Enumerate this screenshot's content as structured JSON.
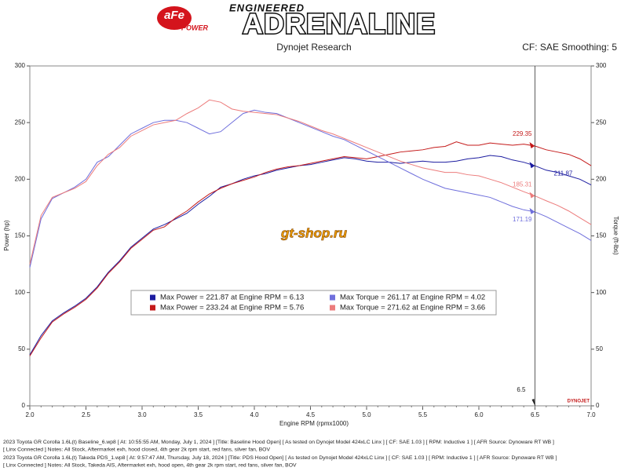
{
  "header": {
    "brand": "aFe",
    "brand_sub": "POWER",
    "tagline_top": "ENGINEERED",
    "tagline": "ADRENALINE"
  },
  "chart_data": {
    "type": "line",
    "title": "Dynojet Research",
    "subtitle": "CF: SAE Smoothing: 5",
    "xlabel": "Engine RPM (rpmx1000)",
    "ylabel": "Power (hp)",
    "y2label": "Torque (ft-lbs)",
    "watermark": "gt-shop.ru",
    "badge": "DYNOJET",
    "x": [
      2,
      2.1,
      2.2,
      2.3,
      2.4,
      2.5,
      2.6,
      2.7,
      2.8,
      2.9,
      3,
      3.1,
      3.2,
      3.3,
      3.4,
      3.5,
      3.6,
      3.7,
      3.8,
      3.9,
      4,
      4.1,
      4.2,
      4.3,
      4.4,
      4.5,
      4.6,
      4.7,
      4.8,
      4.9,
      5,
      5.1,
      5.2,
      5.3,
      5.4,
      5.5,
      5.6,
      5.7,
      5.8,
      5.9,
      6,
      6.1,
      6.2,
      6.3,
      6.4,
      6.5,
      6.6,
      6.7,
      6.8,
      6.9,
      7
    ],
    "xlim": [
      2,
      7
    ],
    "xticks": [
      {
        "value": 2,
        "label": "2.0"
      },
      2.5,
      {
        "value": 3,
        "label": "3.0"
      },
      3.5,
      {
        "value": 4,
        "label": "4.0"
      },
      4.5,
      {
        "value": 5,
        "label": "5.0"
      },
      5.5,
      {
        "value": 6,
        "label": "6.0"
      },
      6.5,
      {
        "value": 7,
        "label": "7.0"
      }
    ],
    "ylim": [
      0,
      300
    ],
    "yticks": [
      0,
      50,
      100,
      150,
      200,
      250,
      300
    ],
    "y2lim": [
      0,
      300
    ],
    "y2ticks": [
      0,
      50,
      100,
      150,
      200,
      250,
      300
    ],
    "grid": false,
    "series": [
      {
        "name": "Max Power = 221.87 at Engine RPM = 6.13",
        "color": "#1c1ca0",
        "values": [
          45,
          62,
          75,
          82,
          88,
          95,
          105,
          118,
          128,
          140,
          148,
          156,
          160,
          165,
          170,
          178,
          185,
          193,
          196,
          200,
          203,
          205,
          208,
          210,
          212,
          213,
          215,
          217,
          219,
          218,
          216,
          215,
          215,
          214,
          215,
          216,
          215,
          215,
          216,
          218,
          219,
          221,
          220,
          217,
          215,
          211.87,
          208,
          206,
          203,
          200,
          195
        ]
      },
      {
        "name": "Max Power = 233.24 at Engine RPM = 5.76",
        "color": "#c41a1a",
        "values": [
          44,
          60,
          74,
          81,
          87,
          94,
          104,
          117,
          127,
          139,
          147,
          155,
          158,
          166,
          172,
          180,
          187,
          192,
          196,
          199,
          202,
          206,
          209,
          211,
          212,
          214,
          216,
          218,
          220,
          219,
          218,
          220,
          222,
          224,
          225,
          226,
          228,
          229,
          233,
          230,
          230,
          232,
          231,
          230,
          231,
          229.35,
          226,
          224,
          222,
          218,
          212
        ]
      },
      {
        "name": "Max Torque = 261.17 at Engine RPM = 4.02",
        "color": "#6f6fdc",
        "axis": "y2",
        "values": [
          122,
          165,
          183,
          188,
          193,
          200,
          215,
          220,
          230,
          240,
          245,
          250,
          252,
          252,
          250,
          245,
          240,
          242,
          250,
          258,
          261,
          259,
          258,
          254,
          250,
          246,
          242,
          238,
          235,
          230,
          225,
          220,
          215,
          210,
          205,
          200,
          196,
          192,
          190,
          188,
          186,
          184,
          180,
          176,
          173,
          171.19,
          167,
          162,
          157,
          152,
          146
        ]
      },
      {
        "name": "Max Torque = 271.62 at Engine RPM = 3.66",
        "color": "#ec7c7c",
        "axis": "y2",
        "values": [
          125,
          168,
          184,
          188,
          192,
          198,
          212,
          222,
          228,
          238,
          243,
          248,
          250,
          252,
          258,
          263,
          270,
          268,
          262,
          260,
          259,
          258,
          257,
          254,
          251,
          247,
          243,
          240,
          236,
          232,
          228,
          224,
          220,
          216,
          213,
          210,
          208,
          206,
          206,
          204,
          203,
          200,
          197,
          193,
          189,
          185.31,
          181,
          177,
          172,
          166,
          160
        ]
      }
    ],
    "cursor": 6.5,
    "annotations": [
      {
        "x": 6.5,
        "y": 229.35,
        "text": "229.35",
        "color": "#c41a1a"
      },
      {
        "x": 6.5,
        "y": 211.87,
        "text": "211.87",
        "color": "#1c1ca0"
      },
      {
        "x": 6.5,
        "y": 185.31,
        "text": "185.31",
        "color": "#ec7c7c"
      },
      {
        "x": 6.5,
        "y": 171.19,
        "text": "171.19",
        "color": "#6f6fdc"
      }
    ]
  },
  "footer": [
    "2023 Toyota GR Corolla 1.6L(t) Baseline_6.wp8 [ At: 10:55:55 AM, Monday, July 1, 2024 ] [Title: Baseline Hood Open]  [ As tested on Dynojet Model 424xLC Linx ] [ CF: SAE 1.03 ] [ RPM: Inductive 1 ] [ AFR Source: Dynoware RT WB ]",
    "[ Linx Connected ] Notes: All Stock, Aftermarket exh, hood closed, 4th gear 2k rpm start, red fans, silver fan, BOV",
    "2023 Toyota GR Corolla 1.6L(t) Takeda PDS_1.wp8 [ At: 9:57:47 AM, Thursday, July 18, 2024 ] [Title: PDS Hood Open]  [ As tested on Dynojet Model 424xLC Linx ] [ CF: SAE 1.03 ] [ RPM: Inductive 1 ] [ AFR Source: Dynoware RT WB ]",
    "[ Linx Connected ] Notes: All Stock, Takeda AIS, Aftermarket exh, hood open, 4th gear 2k rpm start, red fans, silver fan, BOV"
  ]
}
